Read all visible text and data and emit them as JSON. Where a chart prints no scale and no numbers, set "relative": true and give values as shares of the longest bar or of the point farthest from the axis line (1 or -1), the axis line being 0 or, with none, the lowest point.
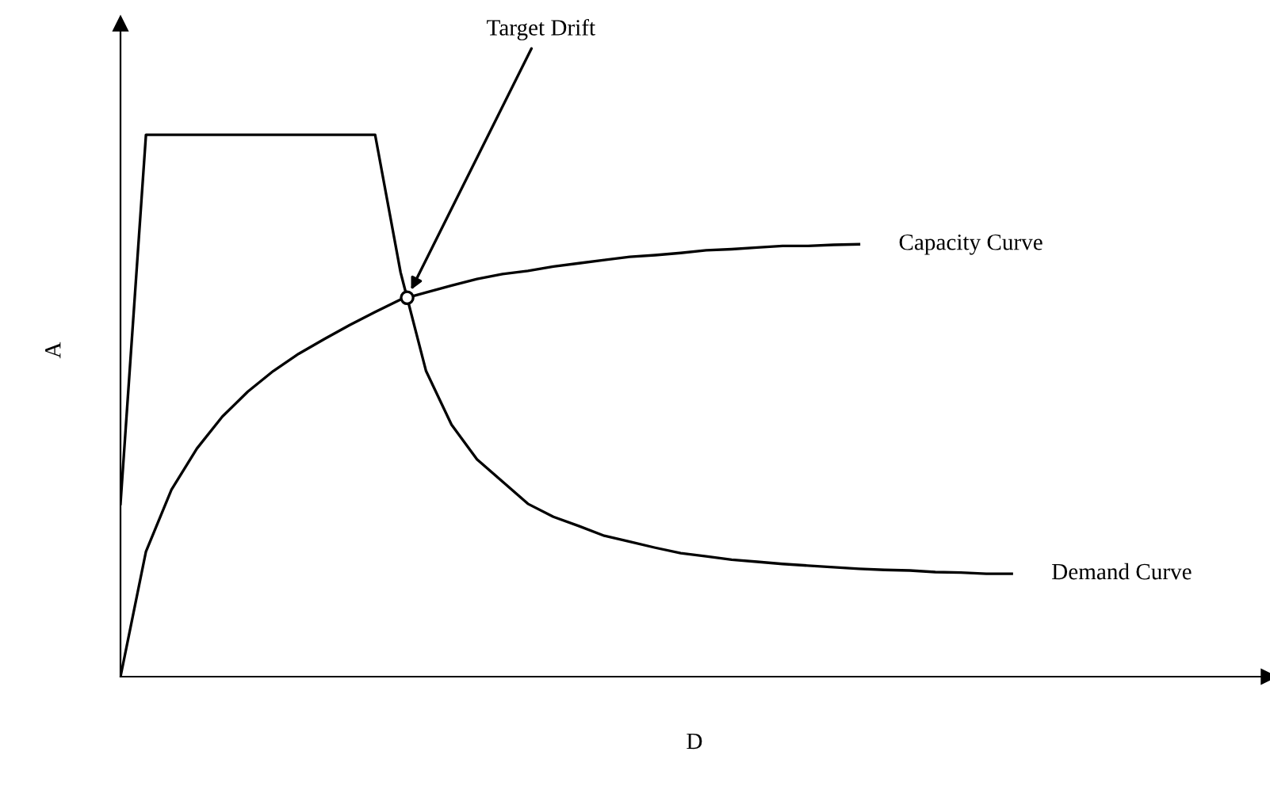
{
  "chart_data": {
    "type": "line",
    "relative": true,
    "xlabel": "D",
    "ylabel": "A",
    "categories": [
      null,
      null,
      null,
      null,
      null,
      null,
      null,
      null,
      null,
      null,
      null,
      null,
      null,
      null,
      null,
      null,
      null,
      null,
      null,
      null,
      null,
      null,
      null,
      null,
      null,
      null,
      null,
      null,
      null,
      null,
      null,
      null,
      null,
      null,
      null,
      null
    ],
    "series": [
      {
        "name": "Demand Curve",
        "color": "#000000",
        "values": [
          0.319,
          1.0,
          1.0,
          1.0,
          1.0,
          1.0,
          1.0,
          1.0,
          1.0,
          1.0,
          1.0,
          0.746,
          0.564,
          0.465,
          0.401,
          0.36,
          0.319,
          0.295,
          0.278,
          0.26,
          0.249,
          0.238,
          0.228,
          0.222,
          0.216,
          0.212,
          0.208,
          0.205,
          0.202,
          0.199,
          0.197,
          0.196,
          0.193,
          0.192,
          0.19,
          0.19
        ]
      },
      {
        "name": "Capacity Curve",
        "color": "#000000",
        "values": [
          0,
          0.231,
          0.345,
          0.421,
          0.48,
          0.526,
          0.564,
          0.596,
          0.623,
          0.649,
          0.673,
          0.696,
          0.709,
          0.722,
          0.734,
          0.743,
          0.749,
          0.757,
          0.763,
          0.769,
          0.775,
          0.778,
          0.782,
          0.787,
          0.789,
          0.792,
          0.795,
          0.795,
          0.797,
          0.798,
          null,
          null,
          null,
          null,
          null,
          null
        ]
      }
    ],
    "annotations": [
      "Target Drift"
    ]
  }
}
